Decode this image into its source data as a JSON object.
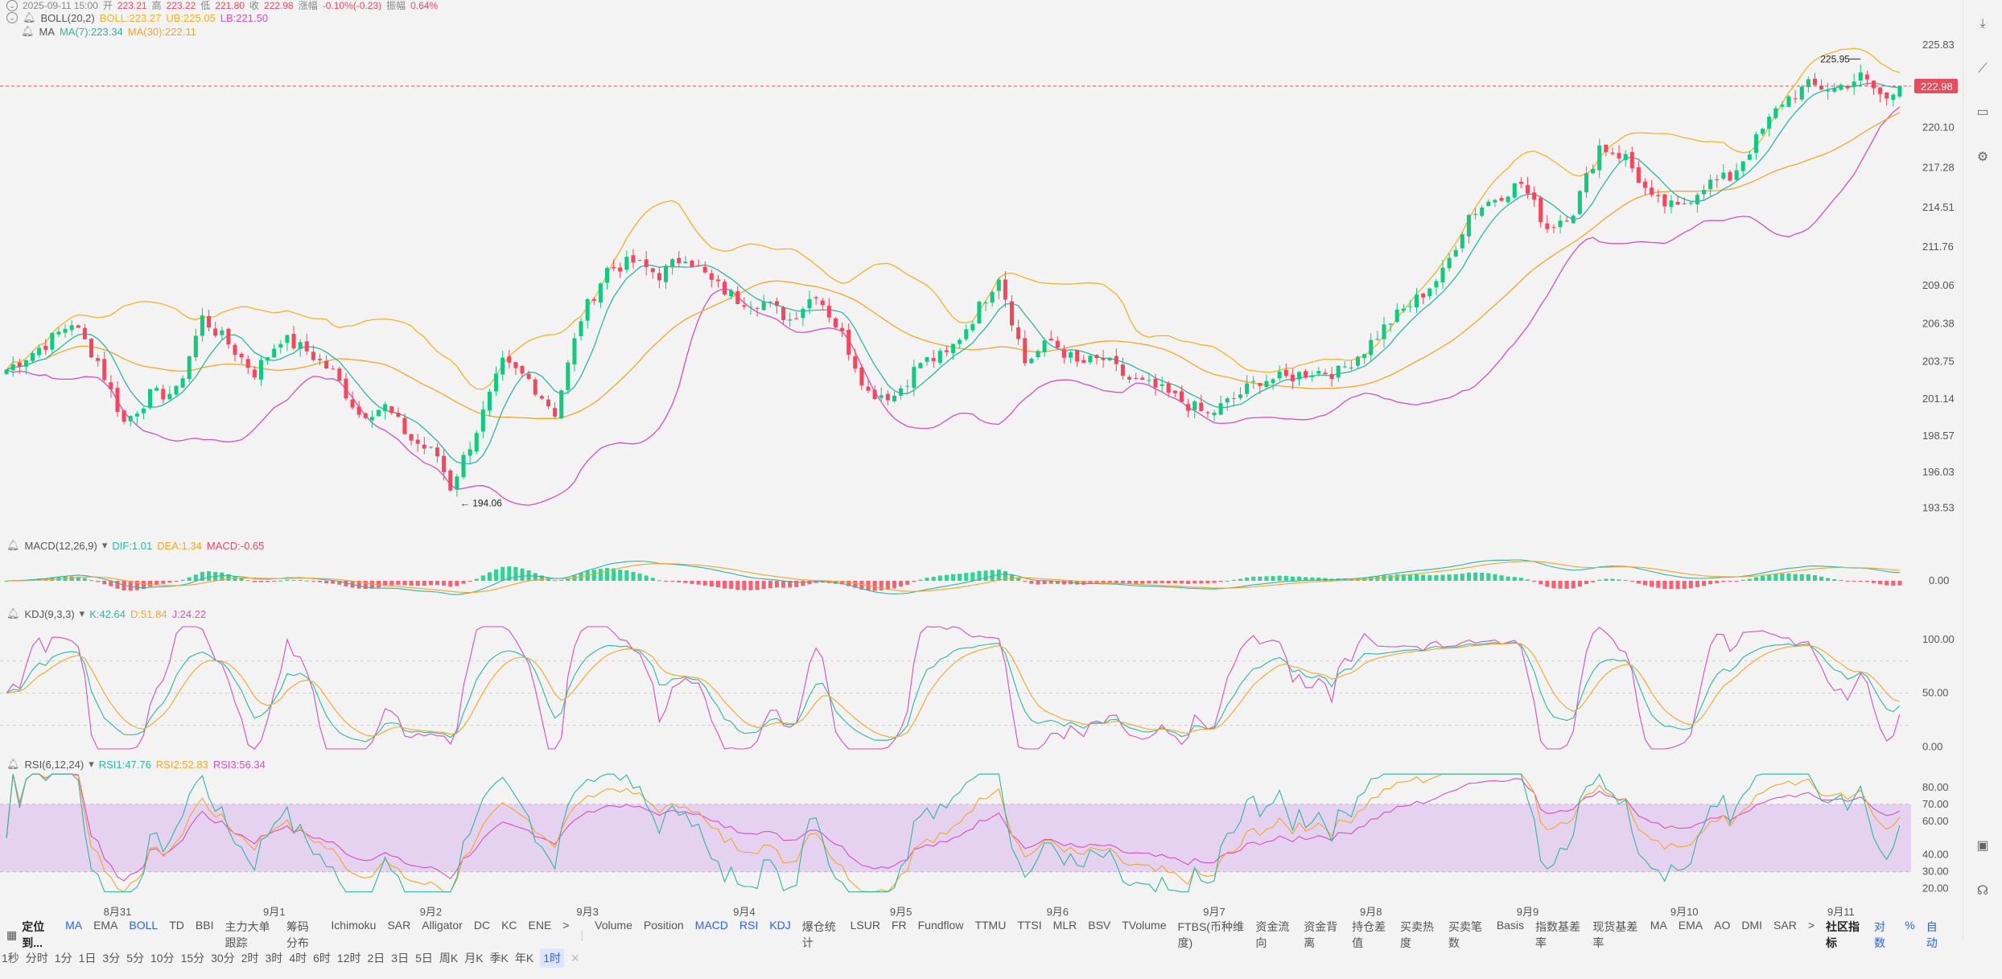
{
  "header": {
    "date": "2025-09-11 15:00",
    "open_label": "开",
    "open": "223.21",
    "high_label": "高",
    "high": "223.22",
    "low_label": "低",
    "low": "221.80",
    "close_label": "收",
    "close": "222.98",
    "change_label": "涨幅",
    "change": "-0.10%(-0.23)",
    "amp_label": "振幅",
    "amp": "0.64%"
  },
  "boll_legend": {
    "name": "BOLL(20,2)",
    "boll": "BOLL:223.27",
    "ub": "UB:225.05",
    "lb": "LB:221.50"
  },
  "ma_legend": {
    "name": "MA",
    "ma7": "MA(7):223.34",
    "ma30": "MA(30):222.11"
  },
  "macd_legend": {
    "name": "MACD(12,26,9)",
    "dif": "DIF:1.01",
    "dea": "DEA:1.34",
    "macd": "MACD:-0.65"
  },
  "kdj_legend": {
    "name": "KDJ(9,3,3)",
    "k": "K:42.64",
    "d": "D:51.84",
    "j": "J:24.22"
  },
  "rsi_legend": {
    "name": "RSI(6,12,24)",
    "r1": "RSI1:47.76",
    "r2": "RSI2:52.83",
    "r3": "RSI3:56.34"
  },
  "colors": {
    "up": "#0ecb81",
    "down": "#f6465d",
    "ma7": "#2bb8a3",
    "ma30": "#f5a623",
    "ub": "#f5b321",
    "lb": "#d64fbf",
    "boll_mid": "#f5b321",
    "rsi_band": "#e4d2f0"
  },
  "chart_data": {
    "type": "candlestick",
    "price_axis": {
      "ticks": [
        "225.83",
        "222.98",
        "220.10",
        "217.28",
        "214.51",
        "211.76",
        "209.06",
        "206.38",
        "203.75",
        "201.14",
        "198.57",
        "196.03",
        "193.53"
      ],
      "range": [
        192.5,
        227.3
      ],
      "current": "222.98"
    },
    "annotations": {
      "high": "225.95",
      "low": "194.06"
    },
    "x_labels": [
      "8月31",
      "9月1",
      "9月2",
      "9月3",
      "9月4",
      "9月5",
      "9月6",
      "9月7",
      "9月8",
      "9月9",
      "9月10",
      "9月11"
    ],
    "close_anchors": [
      [
        0,
        203.2
      ],
      [
        6,
        205.0
      ],
      [
        10,
        206.5
      ],
      [
        14,
        203.8
      ],
      [
        18,
        199.5
      ],
      [
        22,
        201.4
      ],
      [
        26,
        201.6
      ],
      [
        30,
        206.8
      ],
      [
        34,
        205.0
      ],
      [
        38,
        203.0
      ],
      [
        42,
        205.4
      ],
      [
        46,
        204.5
      ],
      [
        50,
        203.0
      ],
      [
        54,
        200.1
      ],
      [
        58,
        200.6
      ],
      [
        62,
        198.3
      ],
      [
        66,
        197.2
      ],
      [
        68,
        195.0
      ],
      [
        72,
        199.0
      ],
      [
        76,
        203.6
      ],
      [
        80,
        202.5
      ],
      [
        84,
        200.2
      ],
      [
        88,
        206.8
      ],
      [
        92,
        210.2
      ],
      [
        96,
        210.7
      ],
      [
        100,
        209.8
      ],
      [
        104,
        211.2
      ],
      [
        108,
        209.3
      ],
      [
        112,
        208.1
      ],
      [
        116,
        207.9
      ],
      [
        120,
        206.7
      ],
      [
        124,
        208.6
      ],
      [
        128,
        205.6
      ],
      [
        132,
        201.6
      ],
      [
        136,
        201.4
      ],
      [
        140,
        203.7
      ],
      [
        144,
        204.2
      ],
      [
        148,
        206.8
      ],
      [
        152,
        209.8
      ],
      [
        156,
        203.7
      ],
      [
        160,
        205.2
      ],
      [
        164,
        203.6
      ],
      [
        168,
        203.9
      ],
      [
        172,
        202.5
      ],
      [
        176,
        201.9
      ],
      [
        180,
        201.0
      ],
      [
        184,
        200.0
      ],
      [
        188,
        201.2
      ],
      [
        192,
        202.5
      ],
      [
        196,
        202.6
      ],
      [
        200,
        203.1
      ],
      [
        204,
        203.0
      ],
      [
        208,
        204.6
      ],
      [
        212,
        206.6
      ],
      [
        216,
        208.1
      ],
      [
        220,
        209.9
      ],
      [
        224,
        214.0
      ],
      [
        228,
        215.2
      ],
      [
        232,
        216.2
      ],
      [
        236,
        213.1
      ],
      [
        240,
        214.3
      ],
      [
        244,
        218.8
      ],
      [
        248,
        218.0
      ],
      [
        252,
        215.0
      ],
      [
        256,
        214.4
      ],
      [
        260,
        216.1
      ],
      [
        264,
        216.6
      ],
      [
        268,
        219.2
      ],
      [
        272,
        221.9
      ],
      [
        276,
        223.0
      ],
      [
        280,
        222.8
      ],
      [
        284,
        223.6
      ],
      [
        288,
        222.0
      ],
      [
        290,
        222.98
      ]
    ],
    "ma": [
      {
        "name": "MA(7)",
        "value": "223.34"
      },
      {
        "name": "MA(30)",
        "value": "222.11"
      }
    ],
    "boll": {
      "period": 20,
      "mult": 2,
      "boll": "223.27",
      "ub": "225.05",
      "lb": "221.50"
    },
    "macd": {
      "params": [
        12,
        26,
        9
      ],
      "axis_ticks": [
        "0.00"
      ]
    },
    "kdj": {
      "params": [
        9,
        3,
        3
      ],
      "axis_ticks": [
        "100.00",
        "50.00",
        "0.00"
      ],
      "range": [
        -5,
        115
      ]
    },
    "rsi": {
      "params": [
        6,
        12,
        24
      ],
      "axis_ticks": [
        "80.00",
        "70.00",
        "60.00",
        "40.00",
        "30.00",
        "20.00"
      ],
      "band": [
        30,
        70
      ],
      "range": [
        15,
        90
      ]
    }
  },
  "indicator_tabs": {
    "main": [
      {
        "label": "定位到...",
        "active": false,
        "bold": true
      },
      {
        "label": "MA",
        "active": true
      },
      {
        "label": "EMA",
        "active": false
      },
      {
        "label": "BOLL",
        "active": true
      },
      {
        "label": "TD",
        "active": false
      },
      {
        "label": "BBI",
        "active": false
      },
      {
        "label": "主力大单跟踪",
        "active": false
      },
      {
        "label": "筹码分布",
        "active": false
      },
      {
        "label": "Ichimoku",
        "active": false
      },
      {
        "label": "SAR",
        "active": false
      },
      {
        "label": "Alligator",
        "active": false
      },
      {
        "label": "DC",
        "active": false
      },
      {
        "label": "KC",
        "active": false
      },
      {
        "label": "ENE",
        "active": false
      },
      {
        "label": ">",
        "active": false
      }
    ],
    "sub": [
      {
        "label": "Volume",
        "active": false
      },
      {
        "label": "Position",
        "active": false
      },
      {
        "label": "MACD",
        "active": true
      },
      {
        "label": "RSI",
        "active": true
      },
      {
        "label": "KDJ",
        "active": true
      },
      {
        "label": "爆仓统计",
        "active": false
      },
      {
        "label": "LSUR",
        "active": false
      },
      {
        "label": "FR",
        "active": false
      },
      {
        "label": "Fundflow",
        "active": false
      },
      {
        "label": "TTMU",
        "active": false
      },
      {
        "label": "TTSI",
        "active": false
      },
      {
        "label": "MLR",
        "active": false
      },
      {
        "label": "BSV",
        "active": false
      },
      {
        "label": "TVolume",
        "active": false
      },
      {
        "label": "FTBS(币种维度)",
        "active": false
      },
      {
        "label": "资金流向",
        "active": false
      },
      {
        "label": "资金背离",
        "active": false
      },
      {
        "label": "持仓差值",
        "active": false
      },
      {
        "label": "买卖热度",
        "active": false
      },
      {
        "label": "买卖笔数",
        "active": false
      },
      {
        "label": "Basis",
        "active": false
      },
      {
        "label": "指数基差率",
        "active": false
      },
      {
        "label": "现货基差率",
        "active": false
      },
      {
        "label": "MA",
        "active": false
      },
      {
        "label": "EMA",
        "active": false
      },
      {
        "label": "AO",
        "active": false
      },
      {
        "label": "DMI",
        "active": false
      },
      {
        "label": "SAR",
        "active": false
      },
      {
        "label": ">",
        "active": false
      },
      {
        "label": "社区指标",
        "active": false,
        "bold": true
      }
    ],
    "right": [
      {
        "label": "对数"
      },
      {
        "label": "%"
      },
      {
        "label": "自动"
      }
    ]
  },
  "timeframes": [
    "1秒",
    "分时",
    "1分",
    "1日",
    "3分",
    "5分",
    "10分",
    "15分",
    "30分",
    "2时",
    "3时",
    "4时",
    "6时",
    "12时",
    "2日",
    "3日",
    "5日",
    "周K",
    "月K",
    "季K",
    "年K",
    "1时"
  ],
  "active_timeframe": "1时"
}
